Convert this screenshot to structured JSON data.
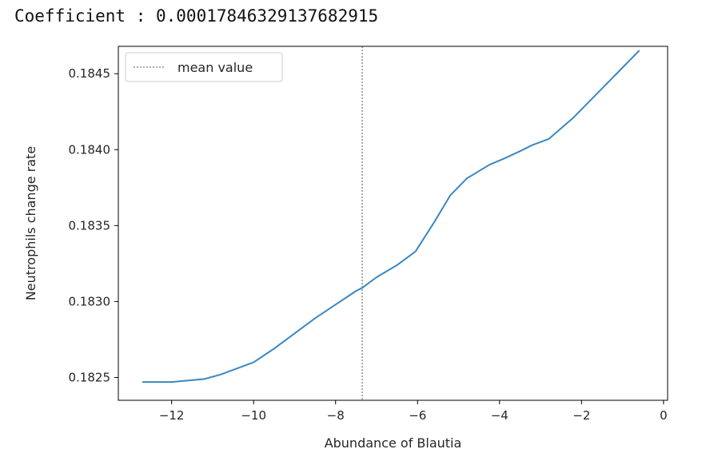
{
  "header": {
    "coefficient_text": "Coefficient : 0.00017846329137682915"
  },
  "chart_data": {
    "type": "line",
    "xlabel": "Abundance of Blautia",
    "ylabel": "Neutrophils change rate",
    "xlim": [
      -13.3,
      0.1
    ],
    "ylim": [
      0.18235,
      0.18468
    ],
    "x_ticks": [
      -12,
      -10,
      -8,
      -6,
      -4,
      -2,
      0
    ],
    "x_tick_labels": [
      "−12",
      "−10",
      "−8",
      "−6",
      "−4",
      "−2",
      "0"
    ],
    "y_ticks": [
      0.1825,
      0.183,
      0.1835,
      0.184,
      0.1845
    ],
    "y_tick_labels": [
      "0.1825",
      "0.1830",
      "0.1835",
      "0.1840",
      "0.1845"
    ],
    "grid": false,
    "legend_position": "top-left",
    "mean_line": {
      "label": "mean value",
      "x": -7.35,
      "color": "#555555",
      "style": "dashed"
    },
    "series": [
      {
        "color": "#3b87c2",
        "x": [
          -12.7,
          -12.4,
          -12.0,
          -11.6,
          -11.2,
          -10.8,
          -10.4,
          -10.0,
          -9.5,
          -9.0,
          -8.5,
          -8.0,
          -7.5,
          -7.35,
          -7.0,
          -6.5,
          -6.05,
          -5.6,
          -5.2,
          -4.8,
          -4.25,
          -3.9,
          -3.5,
          -3.2,
          -2.8,
          -2.5,
          -2.2,
          -1.8,
          -1.4,
          -1.0,
          -0.6
        ],
        "y": [
          0.18247,
          0.18247,
          0.18247,
          0.18248,
          0.18249,
          0.18252,
          0.18256,
          0.1826,
          0.18269,
          0.18279,
          0.18289,
          0.18298,
          0.18307,
          0.18309,
          0.18316,
          0.18324,
          0.18333,
          0.18352,
          0.1837,
          0.18381,
          0.1839,
          0.18394,
          0.18399,
          0.18403,
          0.18407,
          0.18414,
          0.18421,
          0.18432,
          0.18443,
          0.18454,
          0.18465
        ]
      }
    ]
  }
}
